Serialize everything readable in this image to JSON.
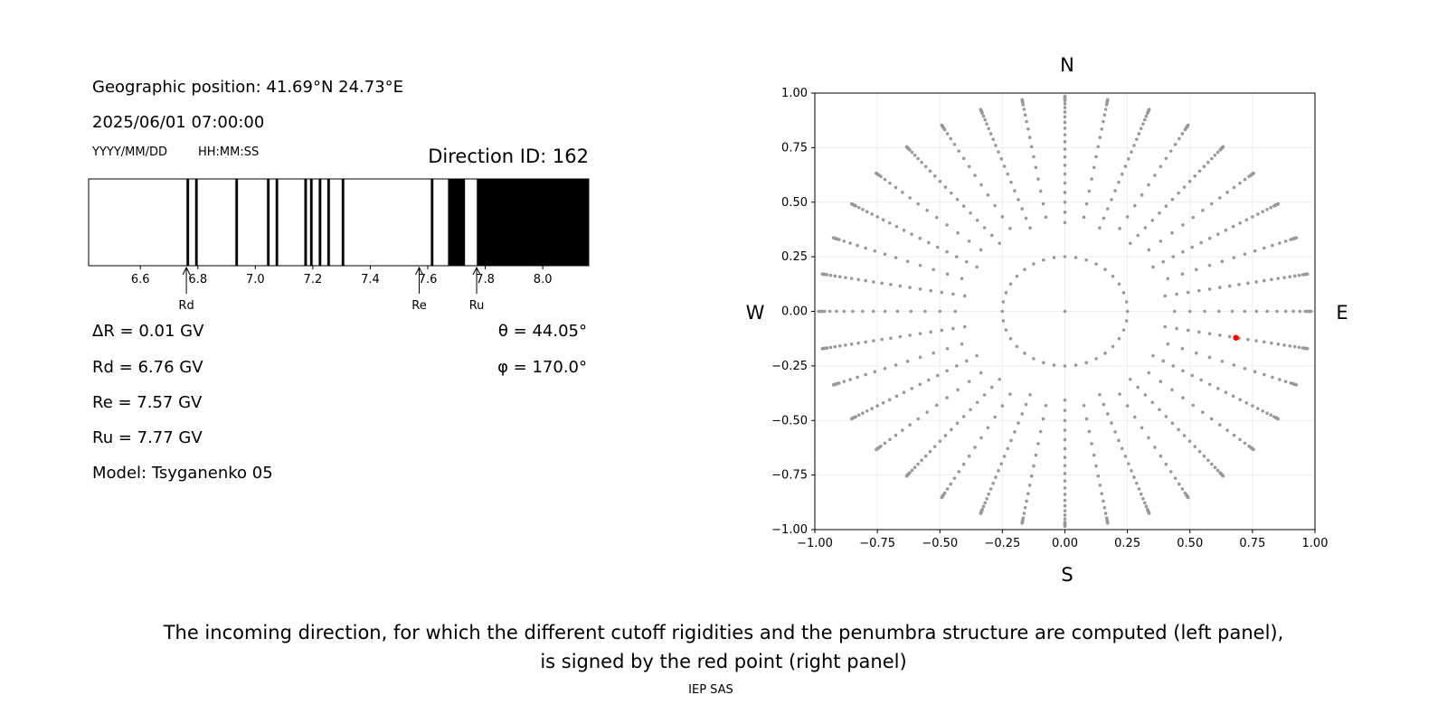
{
  "info": {
    "position": "Geographic position: 41.69°N 24.73°E",
    "datetime": "2025/06/01 07:00:00",
    "date_format": "YYYY/MM/DD",
    "time_format": "HH:MM:SS",
    "direction_id": "Direction ID: 162",
    "delta_r": "ΔR = 0.01 GV",
    "rd": "Rd = 6.76 GV",
    "re": "Re = 7.57 GV",
    "ru": "Ru = 7.77 GV",
    "model": "Model: Tsyganenko 05",
    "theta": "θ = 44.05°",
    "phi": "φ = 170.0°"
  },
  "caption": {
    "line1": "The incoming direction, for which the different cutoff rigidities and the penumbra structure are computed (left panel),",
    "line2": "is signed by the red point (right panel)",
    "credit": "IEP SAS"
  },
  "chart_data": [
    {
      "type": "penumbra-bar",
      "xlim": [
        6.42,
        8.16
      ],
      "xticks": [
        6.6,
        6.8,
        7.0,
        7.2,
        7.4,
        7.6,
        7.8,
        8.0
      ],
      "xtick_labels": [
        "6.6",
        "6.8",
        "7.0",
        "7.2",
        "7.4",
        "7.6",
        "7.8",
        "8.0"
      ],
      "forbidden_intervals_GV": [
        [
          6.76,
          6.77
        ],
        [
          6.79,
          6.8
        ],
        [
          6.93,
          6.94
        ],
        [
          7.04,
          7.05
        ],
        [
          7.07,
          7.08
        ],
        [
          7.17,
          7.18
        ],
        [
          7.19,
          7.2
        ],
        [
          7.22,
          7.23
        ],
        [
          7.25,
          7.26
        ],
        [
          7.3,
          7.31
        ],
        [
          7.61,
          7.62
        ],
        [
          7.67,
          7.73
        ],
        [
          7.77,
          8.16
        ]
      ],
      "markers": [
        {
          "label": "Rd",
          "value": 6.76
        },
        {
          "label": "Re",
          "value": 7.57
        },
        {
          "label": "Ru",
          "value": 7.77
        }
      ],
      "colors": {
        "forbidden": "#000000",
        "allowed": "#ffffff"
      }
    },
    {
      "type": "scatter",
      "xlim": [
        -1,
        1
      ],
      "ylim": [
        -1,
        1
      ],
      "xticks": [
        -1,
        -0.75,
        -0.5,
        -0.25,
        0,
        0.25,
        0.5,
        0.75,
        1
      ],
      "xtick_labels": [
        "−1.00",
        "−0.75",
        "−0.50",
        "−0.25",
        "0.00",
        "0.25",
        "0.50",
        "0.75",
        "1.00"
      ],
      "ytick_labels": [
        "1.00",
        "0.75",
        "0.50",
        "0.25",
        "0.00",
        "−0.25",
        "−0.50",
        "−0.75",
        "−1.00"
      ],
      "grid": true,
      "compass": {
        "N": "N",
        "S": "S",
        "E": "E",
        "W": "W"
      },
      "grid_directions": {
        "azimuth_step_deg": 10,
        "zenith_min_deg": 14.5,
        "zenith_max_deg": 80,
        "projection": "sin(zenith)"
      },
      "selected_point": {
        "x": 0.684,
        "y": -0.121,
        "color": "#ff0000"
      },
      "point_color": "#999999"
    }
  ]
}
